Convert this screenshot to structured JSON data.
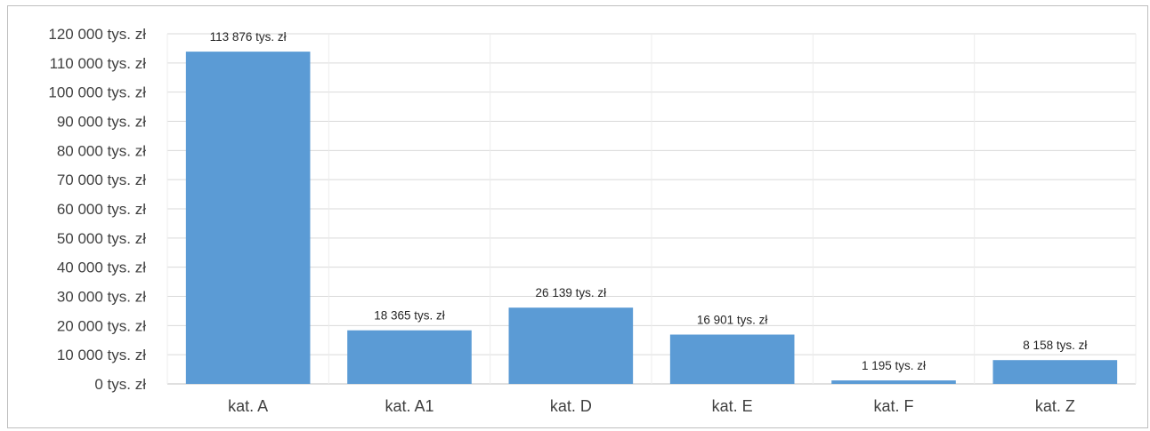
{
  "chart_data": {
    "type": "bar",
    "categories": [
      "kat. A",
      "kat. A1",
      "kat. D",
      "kat. E",
      "kat. F",
      "kat. Z"
    ],
    "values": [
      113876,
      18365,
      26139,
      16901,
      1195,
      8158
    ],
    "data_labels": [
      "113 876 tys. zł",
      "18 365 tys. zł",
      "26 139 tys. zł",
      "16 901 tys. zł",
      "1 195 tys. zł",
      "8 158 tys. zł"
    ],
    "ylim": [
      0,
      120000
    ],
    "y_ticks": [
      0,
      10000,
      20000,
      30000,
      40000,
      50000,
      60000,
      70000,
      80000,
      90000,
      100000,
      110000,
      120000
    ],
    "y_tick_labels": [
      "0 tys. zł",
      "10 000 tys. zł",
      "20 000 tys. zł",
      "30 000 tys. zł",
      "40 000 tys. zł",
      "50 000 tys. zł",
      "60 000 tys. zł",
      "70 000 tys. zł",
      "80 000 tys. zł",
      "90 000 tys. zł",
      "100 000 tys. zł",
      "110 000 tys. zł",
      "120 000 tys. zł"
    ],
    "title": "",
    "xlabel": "",
    "ylabel": "",
    "grid": true,
    "legend": "none",
    "bar_color": "#5b9bd5",
    "grid_color": "#d9d9d9"
  }
}
